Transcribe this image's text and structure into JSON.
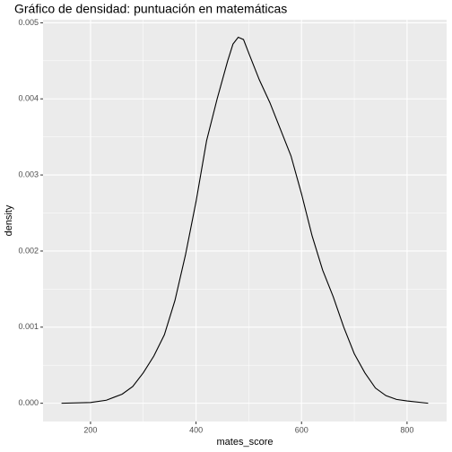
{
  "chart_data": {
    "type": "line",
    "title": "Gráfico de densidad: puntuación en matemáticas",
    "xlabel": "mates_score",
    "ylabel": "density",
    "x": [
      145,
      200,
      230,
      260,
      280,
      300,
      320,
      340,
      360,
      380,
      400,
      420,
      440,
      460,
      470,
      480,
      490,
      500,
      520,
      540,
      560,
      580,
      600,
      620,
      640,
      660,
      680,
      700,
      720,
      740,
      760,
      780,
      800,
      840
    ],
    "series": [
      {
        "color": "#000000",
        "values": [
          0,
          1e-05,
          4e-05,
          0.00012,
          0.00022,
          0.0004,
          0.00062,
          0.0009,
          0.00135,
          0.00195,
          0.00265,
          0.00345,
          0.004,
          0.0045,
          0.00472,
          0.00481,
          0.00478,
          0.0046,
          0.00425,
          0.00395,
          0.0036,
          0.00325,
          0.00275,
          0.0022,
          0.00175,
          0.0014,
          0.001,
          0.00065,
          0.0004,
          0.0002,
          0.0001,
          5e-05,
          3e-05,
          0
        ]
      }
    ],
    "xlim": [
      110,
      875
    ],
    "xticks": [
      200,
      400,
      600,
      800
    ],
    "xminor": [
      300,
      500,
      700
    ],
    "ylim": [
      -0.00024,
      0.00504
    ],
    "yticks": [
      {
        "value": 0,
        "label": "0.000"
      },
      {
        "value": 0.001,
        "label": "0.001"
      },
      {
        "value": 0.002,
        "label": "0.002"
      },
      {
        "value": 0.003,
        "label": "0.003"
      },
      {
        "value": 0.004,
        "label": "0.004"
      },
      {
        "value": 0.005,
        "label": "0.005"
      }
    ],
    "yminor": [
      0.0005,
      0.0015,
      0.0025,
      0.0035,
      0.0045
    ],
    "grid": true
  }
}
